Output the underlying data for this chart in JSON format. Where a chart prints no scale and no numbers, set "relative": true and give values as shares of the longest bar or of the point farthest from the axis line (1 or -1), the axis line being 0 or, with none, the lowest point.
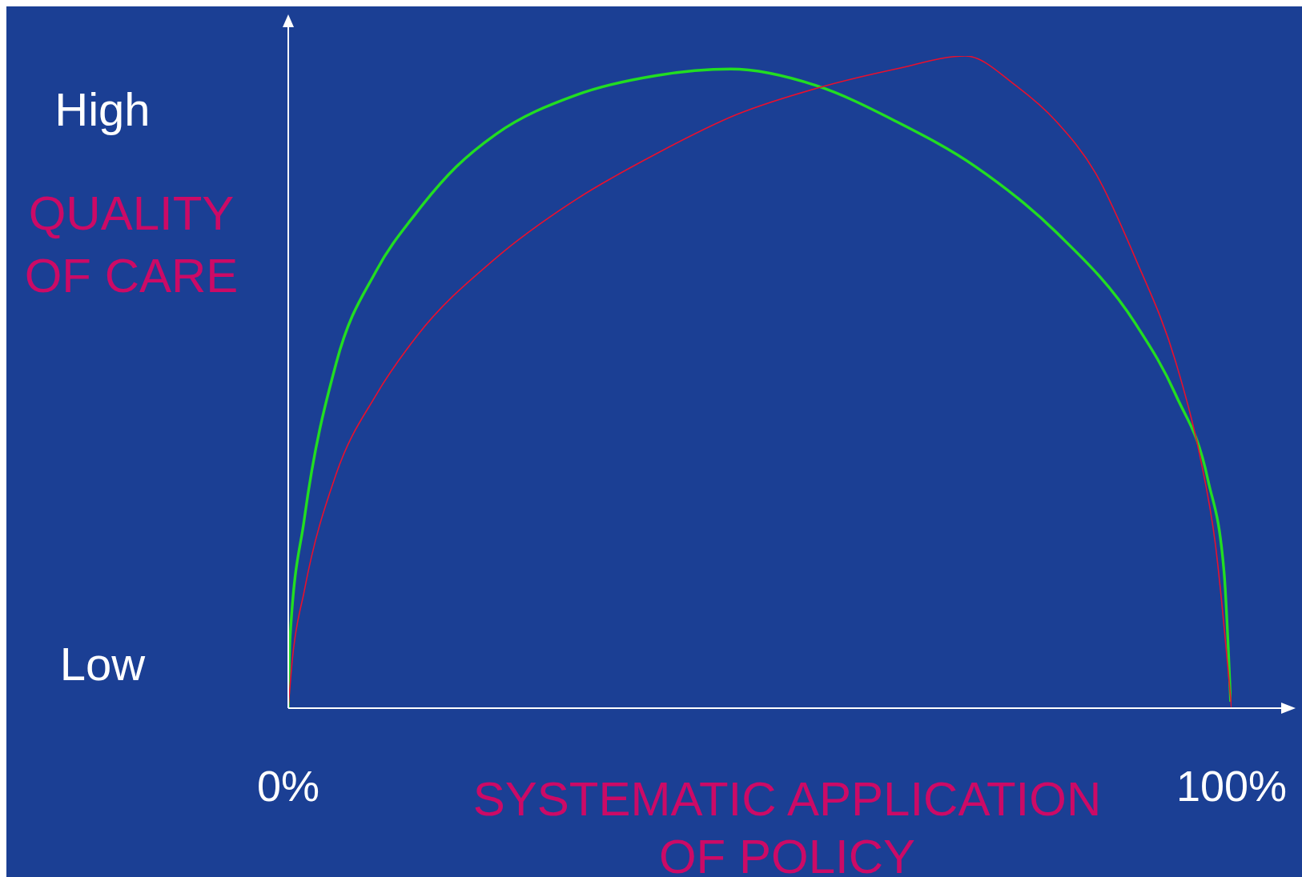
{
  "chart_data": {
    "type": "line",
    "xlabel": "SYSTEMATIC APPLICATION OF POLICY",
    "ylabel": "QUALITY OF CARE",
    "relative": true,
    "xlim": [
      0,
      100
    ],
    "xticks": [
      {
        "value": 0,
        "label": "0%"
      },
      {
        "value": 100,
        "label": "100%"
      }
    ],
    "annotations": [
      "High",
      "Low"
    ],
    "marker": "none",
    "line_style": "solid",
    "series": [
      {
        "color": "#22dd22",
        "x": [
          0,
          0.2,
          1.7,
          5.1,
          9.3,
          13.6,
          17.8,
          22.0,
          30.5,
          39.0,
          46.9,
          55.9,
          64.4,
          72.9,
          81.4,
          89.8,
          94.1,
          97.5,
          99.2,
          99.9
        ],
        "values": [
          0,
          0.11,
          0.29,
          0.53,
          0.67,
          0.76,
          0.83,
          0.88,
          0.94,
          0.97,
          0.98,
          0.955,
          0.9,
          0.83,
          0.73,
          0.59,
          0.48,
          0.35,
          0.21,
          0.01
        ]
      },
      {
        "color": "#e8102e",
        "x": [
          0,
          0.4,
          1.7,
          5.1,
          9.3,
          13.6,
          22.0,
          30.5,
          39.0,
          47.5,
          55.9,
          64.4,
          71.8,
          77.1,
          81.4,
          85.6,
          89.8,
          94.1,
          96.6,
          98.3,
          100
        ],
        "values": [
          0,
          0.07,
          0.18,
          0.36,
          0.48,
          0.57,
          0.69,
          0.78,
          0.85,
          0.91,
          0.95,
          0.98,
          1,
          0.955,
          0.9,
          0.82,
          0.69,
          0.53,
          0.39,
          0.25,
          0
        ]
      }
    ]
  }
}
